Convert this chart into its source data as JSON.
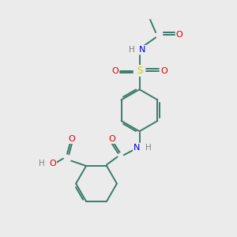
{
  "bg_color": "#ebebeb",
  "atom_colors": {
    "C": "#3a7a6a",
    "N": "#0000dd",
    "O": "#dd0000",
    "S": "#cccc00",
    "H": "#808080"
  },
  "bond_color": "#3a7a6a",
  "bond_width": 1.4,
  "figsize": [
    3.0,
    3.0
  ],
  "dpi": 100
}
